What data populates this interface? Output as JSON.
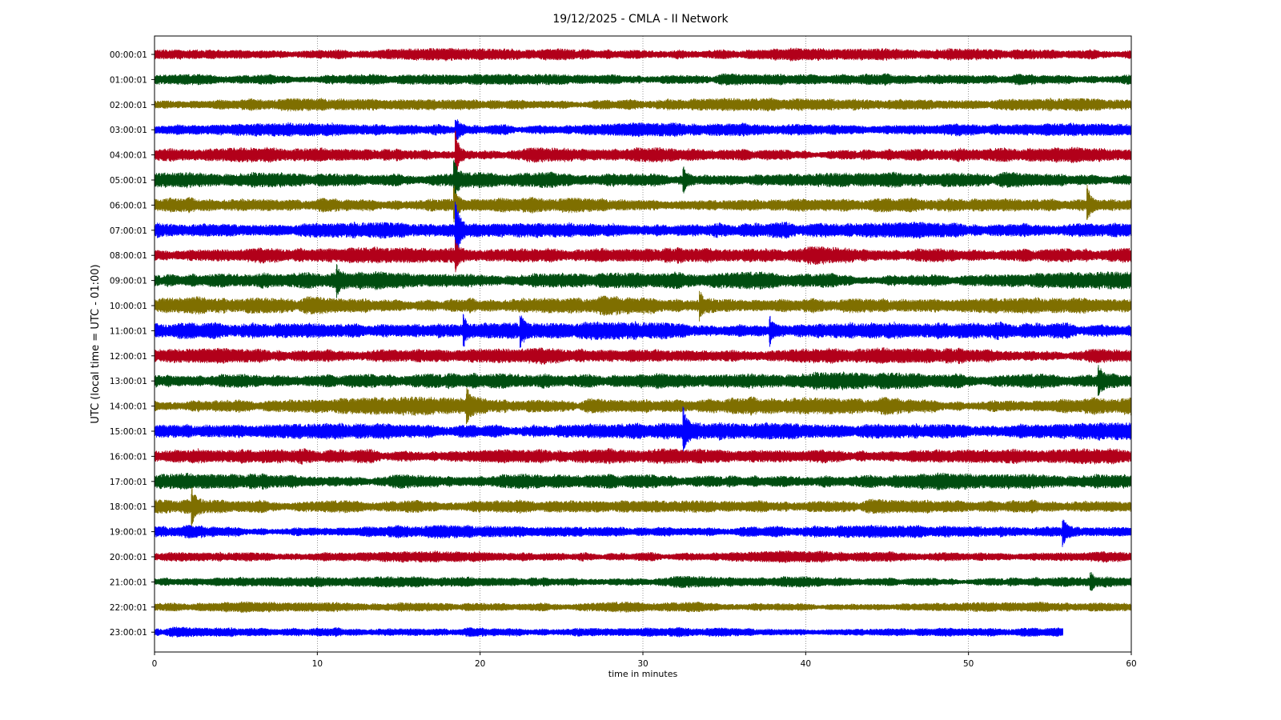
{
  "chart_data": {
    "type": "line",
    "title": "19/12/2025 - CMLA - II Network",
    "xlabel": "time in minutes",
    "ylabel": "UTC (local time = UTC - 01:00)",
    "xlim": [
      0,
      60
    ],
    "x_ticks": [
      0,
      10,
      20,
      30,
      40,
      50,
      60
    ],
    "grid": "vertical dotted lines at x ticks",
    "colors": [
      "#b2001a",
      "#004d10",
      "#7f6f00",
      "#0000ff"
    ],
    "series": [
      {
        "label": "00:00:01",
        "end_minute": 60,
        "amplitude": 0.55,
        "events": []
      },
      {
        "label": "01:00:01",
        "end_minute": 60,
        "amplitude": 0.55,
        "events": []
      },
      {
        "label": "02:00:01",
        "end_minute": 60,
        "amplitude": 0.6,
        "events": []
      },
      {
        "label": "03:00:01",
        "end_minute": 60,
        "amplitude": 0.6,
        "events": [
          {
            "minute": 18.5,
            "amp": 1.2
          }
        ]
      },
      {
        "label": "04:00:01",
        "end_minute": 60,
        "amplitude": 0.65,
        "events": [
          {
            "minute": 18.5,
            "amp": 2.0
          }
        ]
      },
      {
        "label": "05:00:01",
        "end_minute": 60,
        "amplitude": 0.7,
        "events": [
          {
            "minute": 18.4,
            "amp": 1.5
          },
          {
            "minute": 32.5,
            "amp": 0.8
          }
        ]
      },
      {
        "label": "06:00:01",
        "end_minute": 60,
        "amplitude": 0.7,
        "events": [
          {
            "minute": 18.4,
            "amp": 1.4
          },
          {
            "minute": 57.3,
            "amp": 1.4
          }
        ]
      },
      {
        "label": "07:00:01",
        "end_minute": 60,
        "amplitude": 0.75,
        "events": [
          {
            "minute": 18.5,
            "amp": 2.4
          }
        ]
      },
      {
        "label": "08:00:01",
        "end_minute": 60,
        "amplitude": 0.75,
        "events": [
          {
            "minute": 18.5,
            "amp": 0.9
          }
        ]
      },
      {
        "label": "09:00:01",
        "end_minute": 60,
        "amplitude": 0.75,
        "events": [
          {
            "minute": 11.2,
            "amp": 0.9
          }
        ]
      },
      {
        "label": "10:00:01",
        "end_minute": 60,
        "amplitude": 0.8,
        "events": [
          {
            "minute": 33.5,
            "amp": 1.0
          }
        ]
      },
      {
        "label": "11:00:01",
        "end_minute": 60,
        "amplitude": 0.8,
        "events": [
          {
            "minute": 19.0,
            "amp": 1.0
          },
          {
            "minute": 22.5,
            "amp": 1.0
          },
          {
            "minute": 37.8,
            "amp": 1.0
          }
        ]
      },
      {
        "label": "12:00:01",
        "end_minute": 60,
        "amplitude": 0.7,
        "events": []
      },
      {
        "label": "13:00:01",
        "end_minute": 60,
        "amplitude": 0.75,
        "events": [
          {
            "minute": 58.0,
            "amp": 1.0
          }
        ]
      },
      {
        "label": "14:00:01",
        "end_minute": 60,
        "amplitude": 0.8,
        "events": [
          {
            "minute": 19.2,
            "amp": 1.1
          }
        ]
      },
      {
        "label": "15:00:01",
        "end_minute": 60,
        "amplitude": 0.8,
        "events": [
          {
            "minute": 32.5,
            "amp": 1.5
          }
        ]
      },
      {
        "label": "16:00:01",
        "end_minute": 60,
        "amplitude": 0.7,
        "events": []
      },
      {
        "label": "17:00:01",
        "end_minute": 60,
        "amplitude": 0.7,
        "events": []
      },
      {
        "label": "18:00:01",
        "end_minute": 60,
        "amplitude": 0.65,
        "events": [
          {
            "minute": 2.3,
            "amp": 1.2
          }
        ]
      },
      {
        "label": "19:00:01",
        "end_minute": 60,
        "amplitude": 0.6,
        "events": [
          {
            "minute": 55.8,
            "amp": 1.0
          }
        ]
      },
      {
        "label": "20:00:01",
        "end_minute": 60,
        "amplitude": 0.5,
        "events": []
      },
      {
        "label": "21:00:01",
        "end_minute": 60,
        "amplitude": 0.5,
        "events": [
          {
            "minute": 57.5,
            "amp": 0.7
          }
        ]
      },
      {
        "label": "22:00:01",
        "end_minute": 60,
        "amplitude": 0.45,
        "events": []
      },
      {
        "label": "23:00:01",
        "end_minute": 55.8,
        "amplitude": 0.45,
        "events": []
      }
    ]
  }
}
